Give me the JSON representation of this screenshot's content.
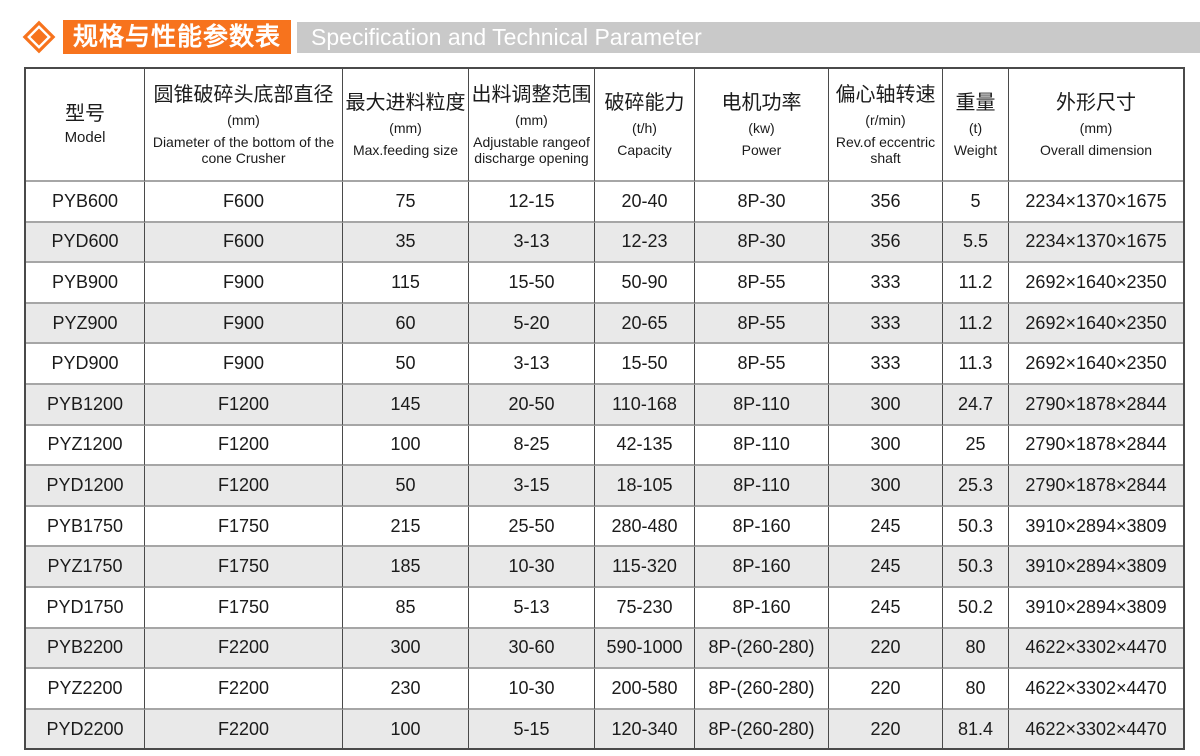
{
  "header": {
    "title_cn": "规格与性能参数表",
    "title_en": "Specification and Technical Parameter",
    "accent_color": "#F7731D",
    "bar_color": "#C9C9C9"
  },
  "table": {
    "row_alt_color": "#E9E9E9",
    "columns": [
      {
        "cn": "型号",
        "unit": "",
        "en": "Model"
      },
      {
        "cn": "圆锥破碎头底部直径",
        "unit": "(mm)",
        "en": "Diameter of the bottom of the cone Crusher"
      },
      {
        "cn": "最大进料粒度",
        "unit": "(mm)",
        "en": "Max.feeding size"
      },
      {
        "cn": "出料调整范围",
        "unit": "(mm)",
        "en": "Adjustable rangeof discharge opening"
      },
      {
        "cn": "破碎能力",
        "unit": "(t/h)",
        "en": "Capacity"
      },
      {
        "cn": "电机功率",
        "unit": "(kw)",
        "en": "Power"
      },
      {
        "cn": "偏心轴转速",
        "unit": "(r/min)",
        "en": "Rev.of eccentric shaft"
      },
      {
        "cn": "重量",
        "unit": "(t)",
        "en": "Weight"
      },
      {
        "cn": "外形尺寸",
        "unit": "(mm)",
        "en": "Overall dimension"
      }
    ],
    "rows": [
      [
        "PYB600",
        "F600",
        "75",
        "12-15",
        "20-40",
        "8P-30",
        "356",
        "5",
        "2234×1370×1675"
      ],
      [
        "PYD600",
        "F600",
        "35",
        "3-13",
        "12-23",
        "8P-30",
        "356",
        "5.5",
        "2234×1370×1675"
      ],
      [
        "PYB900",
        "F900",
        "115",
        "15-50",
        "50-90",
        "8P-55",
        "333",
        "11.2",
        "2692×1640×2350"
      ],
      [
        "PYZ900",
        "F900",
        "60",
        "5-20",
        "20-65",
        "8P-55",
        "333",
        "11.2",
        "2692×1640×2350"
      ],
      [
        "PYD900",
        "F900",
        "50",
        "3-13",
        "15-50",
        "8P-55",
        "333",
        "11.3",
        "2692×1640×2350"
      ],
      [
        "PYB1200",
        "F1200",
        "145",
        "20-50",
        "110-168",
        "8P-110",
        "300",
        "24.7",
        "2790×1878×2844"
      ],
      [
        "PYZ1200",
        "F1200",
        "100",
        "8-25",
        "42-135",
        "8P-110",
        "300",
        "25",
        "2790×1878×2844"
      ],
      [
        "PYD1200",
        "F1200",
        "50",
        "3-15",
        "18-105",
        "8P-110",
        "300",
        "25.3",
        "2790×1878×2844"
      ],
      [
        "PYB1750",
        "F1750",
        "215",
        "25-50",
        "280-480",
        "8P-160",
        "245",
        "50.3",
        "3910×2894×3809"
      ],
      [
        "PYZ1750",
        "F1750",
        "185",
        "10-30",
        "115-320",
        "8P-160",
        "245",
        "50.3",
        "3910×2894×3809"
      ],
      [
        "PYD1750",
        "F1750",
        "85",
        "5-13",
        "75-230",
        "8P-160",
        "245",
        "50.2",
        "3910×2894×3809"
      ],
      [
        "PYB2200",
        "F2200",
        "300",
        "30-60",
        "590-1000",
        "8P-(260-280)",
        "220",
        "80",
        "4622×3302×4470"
      ],
      [
        "PYZ2200",
        "F2200",
        "230",
        "10-30",
        "200-580",
        "8P-(260-280)",
        "220",
        "80",
        "4622×3302×4470"
      ],
      [
        "PYD2200",
        "F2200",
        "100",
        "5-15",
        "120-340",
        "8P-(260-280)",
        "220",
        "81.4",
        "4622×3302×4470"
      ]
    ]
  }
}
